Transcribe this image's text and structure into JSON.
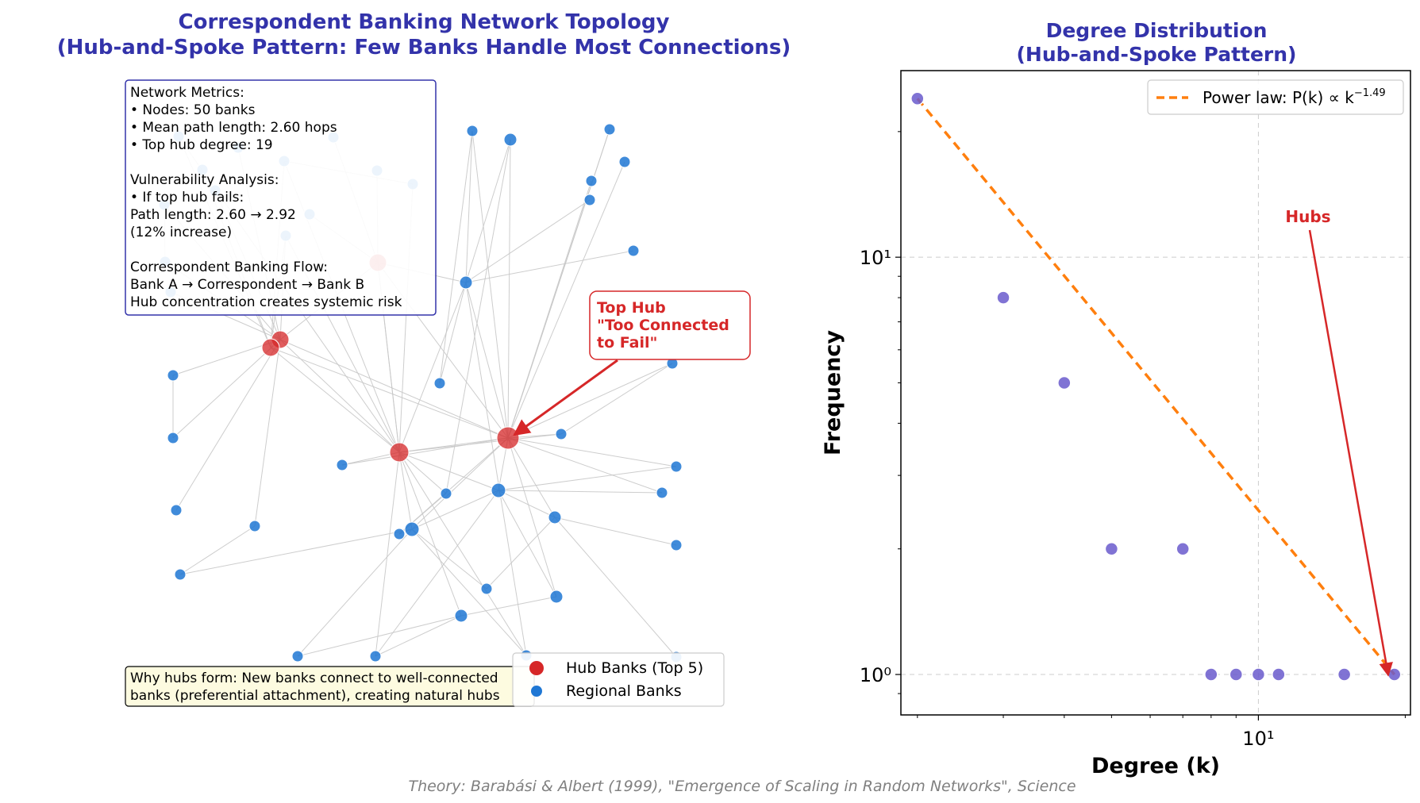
{
  "figure": {
    "footer": "Theory: Barabási & Albert (1999), \"Emergence of Scaling in Random Networks\", Science"
  },
  "colors": {
    "hub": "#d62728",
    "regional": "#1f77d4",
    "edge": "#c8c8c8",
    "title": "#3333aa",
    "scatter": "#6a5acd",
    "power_law": "#ff7f0e",
    "annotation": "#d62728"
  },
  "network_panel": {
    "title_lines": [
      "Correspondent Banking Network Topology",
      "(Hub-and-Spoke Pattern: Few Banks Handle Most Connections)"
    ],
    "metrics_box_lines": [
      "Network Metrics:",
      "• Nodes: 50 banks",
      "• Mean path length: 2.60 hops",
      "• Top hub degree: 19",
      "",
      "Vulnerability Analysis:",
      "• If top hub fails:",
      "  Path length: 2.60 → 2.92",
      "  (12% increase)",
      "",
      "Correspondent Banking Flow:",
      "Bank A → Correspondent → Bank B",
      "Hub concentration creates systemic risk"
    ],
    "top_hub_annotation_lines": [
      "Top Hub",
      "\"Too Connected",
      "to Fail\""
    ],
    "note_lines": [
      "Why hubs form: New banks connect to well-connected",
      "banks (preferential attachment), creating natural hubs"
    ],
    "legend": [
      {
        "label": "Hub Banks (Top 5)",
        "kind": "hub"
      },
      {
        "label": "Regional Banks",
        "kind": "regional"
      }
    ]
  },
  "chart_data": [
    {
      "type": "network",
      "title": "Correspondent Banking Network Topology (Hub-and-Spoke Pattern: Few Banks Handle Most Connections)",
      "node_count": 50,
      "hub_count": 5,
      "top_hub_degree": 19,
      "mean_path_length": 2.6,
      "path_length_if_top_hub_fails": 2.92
    },
    {
      "type": "scatter",
      "title": "Degree Distribution (Hub-and-Spoke Pattern)",
      "xlabel": "Degree (k)",
      "ylabel": "Frequency",
      "xscale": "log",
      "yscale": "log",
      "xlim": [
        1.85,
        20.5
      ],
      "ylim": [
        0.8,
        28
      ],
      "x_ticks": [
        {
          "value": 10,
          "label": "10¹"
        }
      ],
      "y_ticks": [
        {
          "value": 1,
          "label": "10⁰"
        },
        {
          "value": 10,
          "label": "10¹"
        }
      ],
      "grid": true,
      "points": [
        {
          "x": 2,
          "y": 24
        },
        {
          "x": 3,
          "y": 8
        },
        {
          "x": 4,
          "y": 5
        },
        {
          "x": 5,
          "y": 2
        },
        {
          "x": 7,
          "y": 2
        },
        {
          "x": 8,
          "y": 1
        },
        {
          "x": 9,
          "y": 1
        },
        {
          "x": 10,
          "y": 1
        },
        {
          "x": 11,
          "y": 1
        },
        {
          "x": 15,
          "y": 1
        },
        {
          "x": 19,
          "y": 1
        }
      ],
      "power_law": {
        "label": "Power law: P(k) ∝ k",
        "exponent_label": "−1.49",
        "exponent": -1.49,
        "x_range": [
          2,
          19
        ]
      },
      "legend_position": "top-right",
      "annotation": {
        "text": "Hubs",
        "target": {
          "x": 19,
          "y": 1
        }
      }
    }
  ]
}
